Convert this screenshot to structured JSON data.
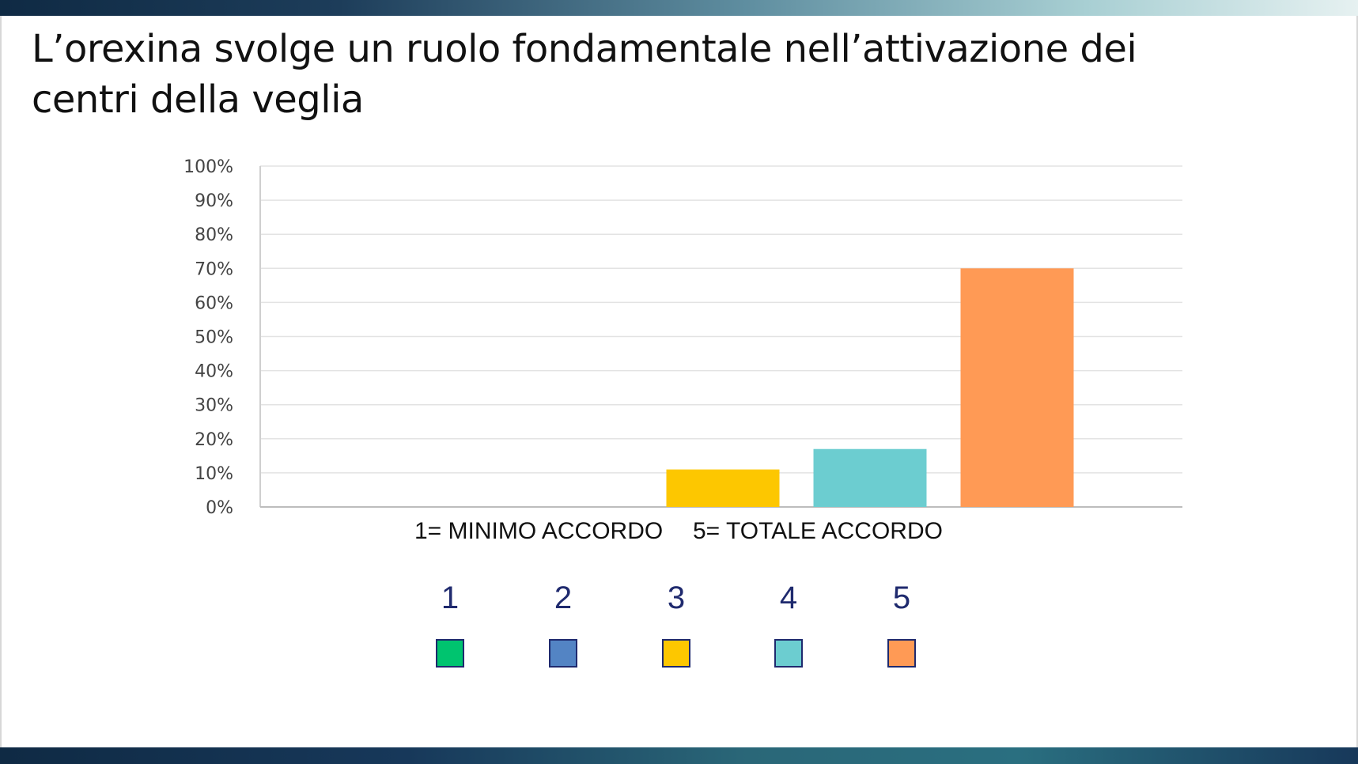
{
  "slide": {
    "title": "L’orexina svolge un ruolo fondamentale nell’attivazione dei centri della veglia"
  },
  "chart_data": {
    "type": "bar",
    "categories": [
      "1",
      "2",
      "3",
      "4",
      "5"
    ],
    "values": [
      0,
      0,
      11,
      17,
      70
    ],
    "colors": [
      "#00c46f",
      "#5384c4",
      "#fdc700",
      "#6ccdd0",
      "#ff9a55"
    ],
    "ylim": [
      0,
      100
    ],
    "yticks": [
      "0%",
      "10%",
      "20%",
      "30%",
      "40%",
      "50%",
      "60%",
      "70%",
      "80%",
      "90%",
      "100%"
    ],
    "grid": true,
    "xlabel_left": "1= MINIMO ACCORDO",
    "xlabel_right": "5= TOTALE ACCORDO",
    "legend": [
      {
        "label": "1",
        "color": "#00c46f"
      },
      {
        "label": "2",
        "color": "#5384c4"
      },
      {
        "label": "3",
        "color": "#fdc700"
      },
      {
        "label": "4",
        "color": "#6ccdd0"
      },
      {
        "label": "5",
        "color": "#ff9a55"
      }
    ]
  }
}
